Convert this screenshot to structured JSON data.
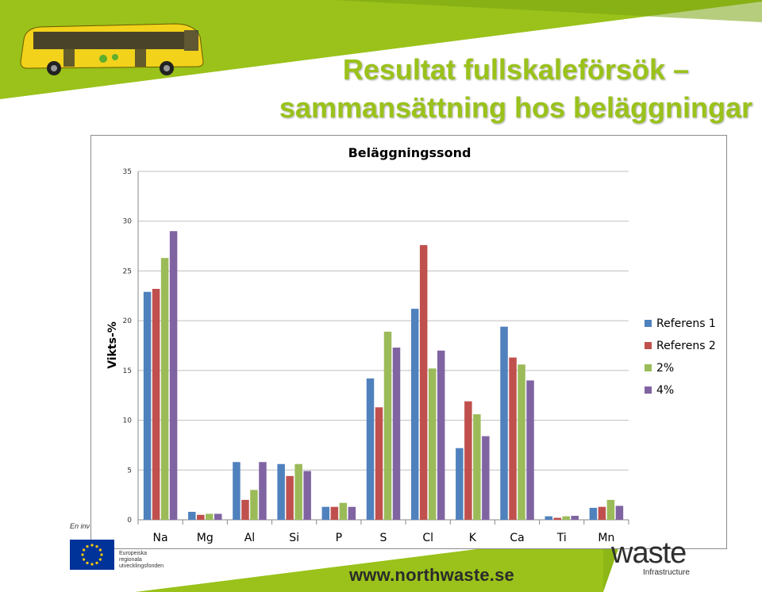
{
  "slide": {
    "title_line1": "Resultat fullskaleförsök –",
    "title_line2": "sammansättning hos beläggningar",
    "footer_note": "En inv",
    "eu_text": [
      "Europeiska",
      "regionala",
      "utvecklingsfonden"
    ],
    "url": "www.northwaste.se",
    "logo_word": "waste",
    "logo_sub": "Infrastructure",
    "colors": {
      "accent_green": "#9ac21a",
      "dark_green": "#7aa414"
    }
  },
  "chart_data": {
    "type": "bar",
    "title": "Beläggningssond",
    "xlabel": "",
    "ylabel": "Vikts-%",
    "ylim": [
      0,
      35
    ],
    "yticks": [
      0,
      5,
      10,
      15,
      20,
      25,
      30,
      35
    ],
    "grid": true,
    "legend_position": "right",
    "categories": [
      "Na",
      "Mg",
      "Al",
      "Si",
      "P",
      "S",
      "Cl",
      "K",
      "Ca",
      "Ti",
      "Mn"
    ],
    "series": [
      {
        "name": "Referens 1",
        "color": "#4f81bd",
        "values": [
          22.9,
          0.8,
          5.8,
          5.6,
          1.3,
          14.2,
          21.2,
          7.2,
          19.4,
          0.35,
          1.2
        ]
      },
      {
        "name": "Referens 2",
        "color": "#c0504d",
        "values": [
          23.2,
          0.5,
          2.0,
          4.4,
          1.3,
          11.3,
          27.6,
          11.9,
          16.3,
          0.2,
          1.3
        ]
      },
      {
        "name": "2%",
        "color": "#9bbb59",
        "values": [
          26.3,
          0.6,
          3.0,
          5.6,
          1.7,
          18.9,
          15.2,
          10.6,
          15.6,
          0.35,
          2.0
        ]
      },
      {
        "name": "4%",
        "color": "#8064a2",
        "values": [
          29.0,
          0.6,
          5.8,
          4.9,
          1.3,
          17.3,
          17.0,
          8.4,
          14.0,
          0.4,
          1.4
        ]
      }
    ]
  }
}
